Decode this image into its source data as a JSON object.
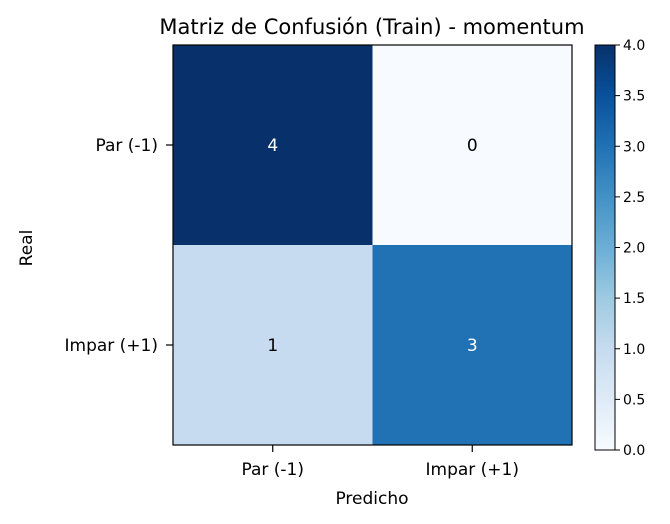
{
  "chart_data": {
    "type": "heatmap",
    "title": "Matriz de Confusión (Train) - momentum",
    "xlabel": "Predicho",
    "ylabel": "Real",
    "x_categories": [
      "Par (-1)",
      "Impar (+1)"
    ],
    "y_categories": [
      "Par (-1)",
      "Impar (+1)"
    ],
    "values": [
      [
        4,
        0
      ],
      [
        1,
        3
      ]
    ],
    "cell_labels": [
      [
        "4",
        "0"
      ],
      [
        "1",
        "3"
      ]
    ],
    "colormap": "Blues",
    "colorbar": {
      "range": [
        0.0,
        4.0
      ],
      "ticks": [
        0.0,
        0.5,
        1.0,
        1.5,
        2.0,
        2.5,
        3.0,
        3.5,
        4.0
      ],
      "tick_labels": [
        "0.0",
        "0.5",
        "1.0",
        "1.5",
        "2.0",
        "2.5",
        "3.0",
        "3.5",
        "4.0"
      ]
    },
    "grid": false
  }
}
